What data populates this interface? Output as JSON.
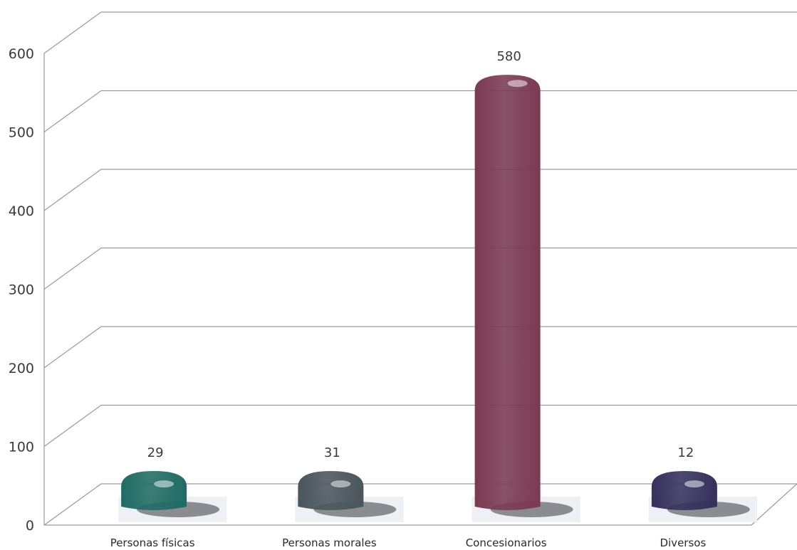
{
  "chart_data": {
    "type": "bar",
    "categories": [
      "Personas físicas",
      "Personas morales",
      "Concesionarios",
      "Diversos"
    ],
    "values": [
      29,
      31,
      580,
      12
    ],
    "data_labels": [
      "29",
      "31",
      "580",
      "12"
    ],
    "ylim": [
      0,
      600
    ],
    "yticks": [
      {
        "value": 0,
        "label": "0"
      },
      {
        "value": 100,
        "label": "100"
      },
      {
        "value": 200,
        "label": "200"
      },
      {
        "value": 300,
        "label": "300"
      },
      {
        "value": 400,
        "label": "400"
      },
      {
        "value": 500,
        "label": "500"
      },
      {
        "value": 600,
        "label": "600"
      }
    ],
    "grid": true,
    "style": "3d-cylinder",
    "colors": [
      "#1f6b63",
      "#4a555c",
      "#7a3a52",
      "#35305c"
    ]
  }
}
